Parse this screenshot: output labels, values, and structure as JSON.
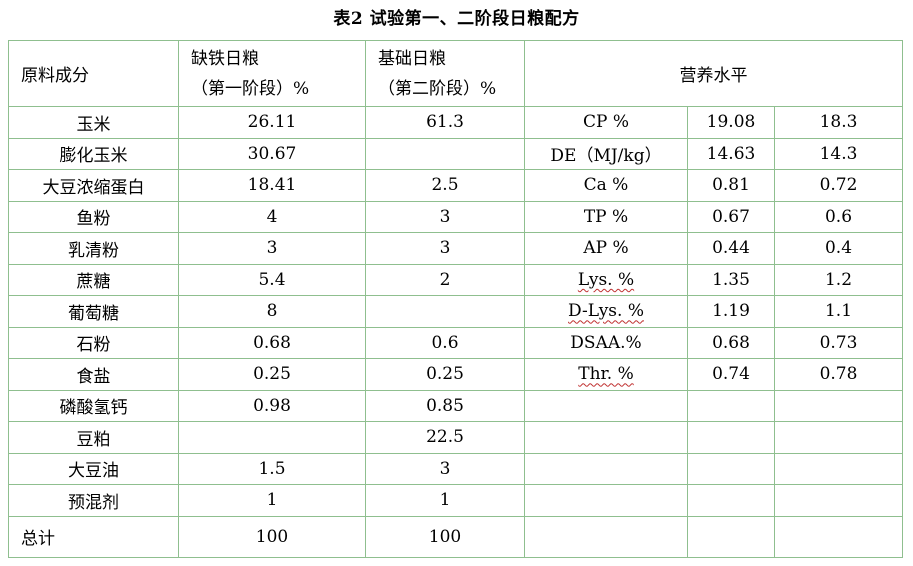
{
  "title": "表2  试验第一、二阶段日粮配方",
  "header": {
    "ingredient": "原料成分",
    "phase1_line1": "缺铁日粮",
    "phase1_line2": "（第一阶段）%",
    "phase2_line1": "基础日粮",
    "phase2_line2": "（第二阶段）%",
    "nutrition": "营养水平"
  },
  "rows": [
    {
      "name": "玉米",
      "p1": "26.11",
      "p2": "61.3",
      "nutrient": "CP %",
      "n1": "19.08",
      "n2": "18.3"
    },
    {
      "name": "膨化玉米",
      "p1": "30.67",
      "p2": "",
      "nutrient": "DE（MJ/kg）",
      "n1": "14.63",
      "n2": "14.3"
    },
    {
      "name": "大豆浓缩蛋白",
      "p1": "18.41",
      "p2": "2.5",
      "nutrient": "Ca %",
      "n1": "0.81",
      "n2": "0.72"
    },
    {
      "name": "鱼粉",
      "p1": "4",
      "p2": "3",
      "nutrient": "TP %",
      "n1": "0.67",
      "n2": "0.6"
    },
    {
      "name": "乳清粉",
      "p1": "3",
      "p2": "3",
      "nutrient": "AP %",
      "n1": "0.44",
      "n2": "0.4"
    },
    {
      "name": "蔗糖",
      "p1": "5.4",
      "p2": "2",
      "nutrient": "Lys. %",
      "n1": "1.35",
      "n2": "1.2"
    },
    {
      "name": "葡萄糖",
      "p1": "8",
      "p2": "",
      "nutrient": "D-Lys. %",
      "n1": "1.19",
      "n2": "1.1"
    },
    {
      "name": "石粉",
      "p1": "0.68",
      "p2": "0.6",
      "nutrient": "DSAA.%",
      "n1": "0.68",
      "n2": "0.73"
    },
    {
      "name": "食盐",
      "p1": "0.25",
      "p2": "0.25",
      "nutrient": "Thr. %",
      "n1": "0.74",
      "n2": "0.78"
    },
    {
      "name": "磷酸氢钙",
      "p1": "0.98",
      "p2": "0.85",
      "nutrient": "",
      "n1": "",
      "n2": ""
    },
    {
      "name": "豆粕",
      "p1": "",
      "p2": "22.5",
      "nutrient": "",
      "n1": "",
      "n2": ""
    },
    {
      "name": "大豆油",
      "p1": "1.5",
      "p2": "3",
      "nutrient": "",
      "n1": "",
      "n2": ""
    },
    {
      "name": "预混剂",
      "p1": "1",
      "p2": "1",
      "nutrient": "",
      "n1": "",
      "n2": ""
    }
  ],
  "total": {
    "name": "总计",
    "p1": "100",
    "p2": "100"
  }
}
